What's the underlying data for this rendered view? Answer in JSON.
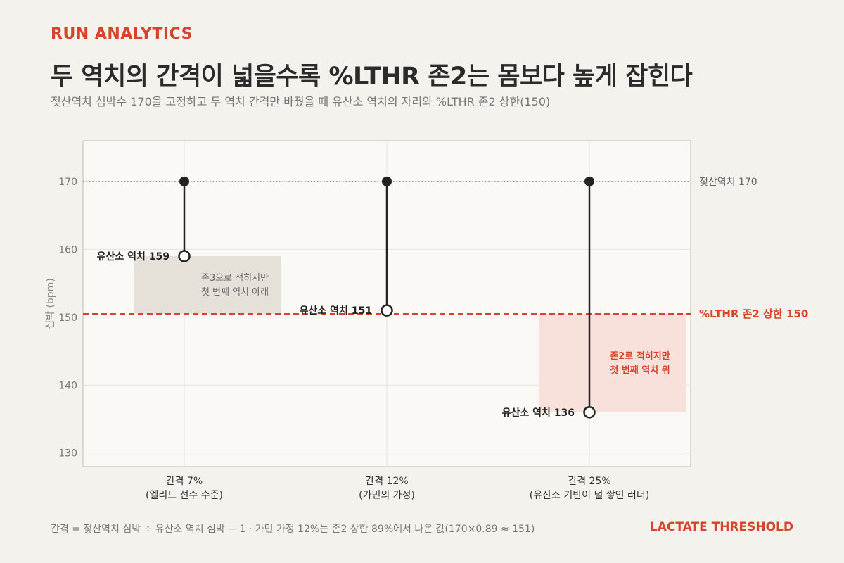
{
  "header": {
    "kicker": "RUN ANALYTICS",
    "title": "두 역치의 간격이 넓을수록 %LTHR 존2는 몸보다 높게 잡힌다",
    "subtitle": "젖산역치 심박수 170을 고정하고 두 역치 간격만 바꿨을 때 유산소 역치의 자리와 %LTHR 존2 상한(150)"
  },
  "footer": {
    "note": "간격 = 젖산역치 심박 ÷ 유산소 역치 심박 − 1 · 가민 가정 12%는 존2 상한 89%에서 나온 값(170×0.89 ≈ 151)",
    "brand": "LACTATE THRESHOLD"
  },
  "colors": {
    "accent": "#d9432a",
    "ink": "#222222",
    "plot_bg": "#faf9f5",
    "gray_band": "#e5e1d9",
    "red_band": "#f8e1da"
  },
  "chart_data": {
    "type": "dumbbell",
    "ylabel": "심박 (bpm)",
    "ylim": [
      128,
      176
    ],
    "yticks": [
      130,
      140,
      150,
      160,
      170
    ],
    "grid": true,
    "categories": [
      {
        "line1": "간격 7%",
        "line2": "(엘리트 선수 수준)"
      },
      {
        "line1": "간격 12%",
        "line2": "(가민의 가정)"
      },
      {
        "line1": "간격 25%",
        "line2": "(유산소 기반이 덜 쌓인 러너)"
      }
    ],
    "lactate_threshold": [
      170,
      170,
      170
    ],
    "aerobic_threshold": [
      159,
      151,
      136
    ],
    "point_labels": [
      "유산소 역치 159",
      "유산소 역치 151",
      "유산소 역치 136"
    ],
    "reference_lines": [
      {
        "value": 170,
        "label": "젖산역치 170",
        "style": "dotted"
      },
      {
        "value": 150.5,
        "label": "%LTHR 존2 상한 150",
        "style": "dashed"
      }
    ],
    "bands": [
      {
        "category_index": 0,
        "from": 150.5,
        "to": 159,
        "tone": "gray",
        "line1": "존3으로 적히지만",
        "line2": "첫 번째 역치 아래"
      },
      {
        "category_index": 2,
        "from": 136,
        "to": 150.5,
        "tone": "red",
        "line1": "존2로 적히지만",
        "line2": "첫 번째 역치 위"
      }
    ]
  }
}
